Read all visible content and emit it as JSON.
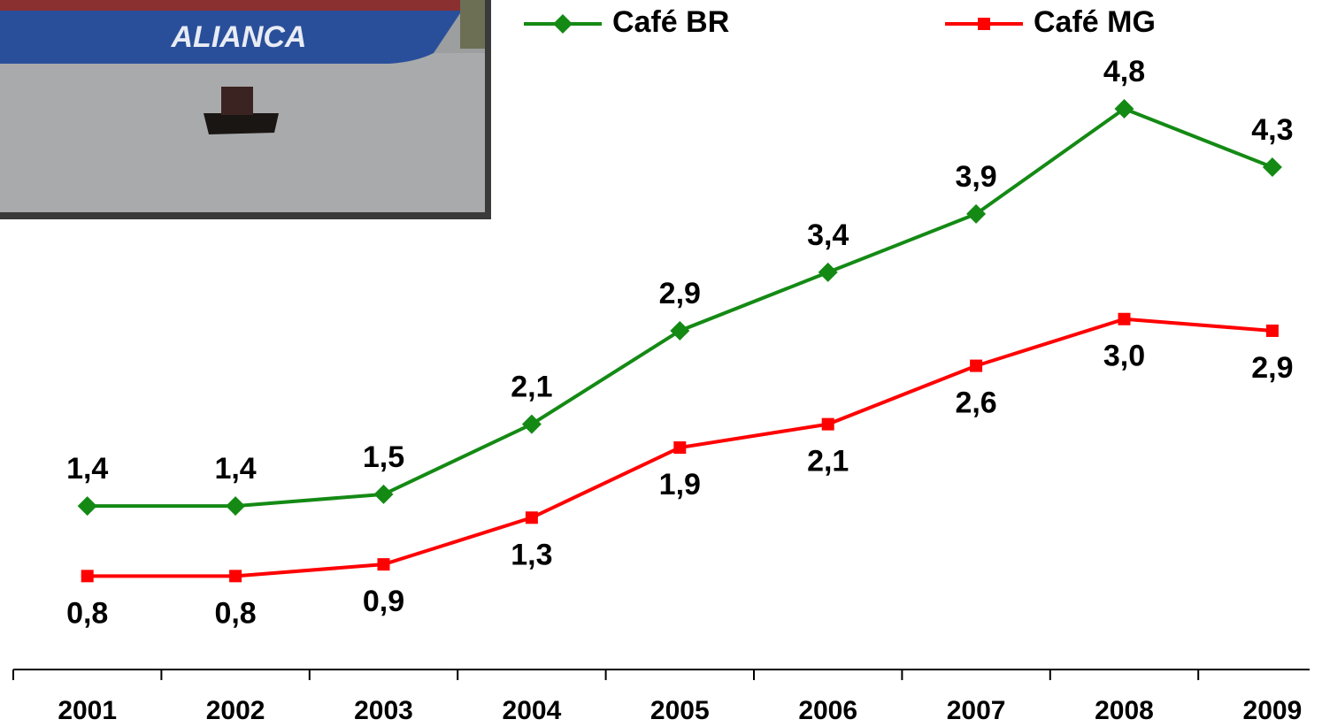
{
  "chart_data": {
    "type": "line",
    "categories": [
      "2001",
      "2002",
      "2003",
      "2004",
      "2005",
      "2006",
      "2007",
      "2008",
      "2009"
    ],
    "series": [
      {
        "name": "Café BR",
        "color": "#148a14",
        "marker": "diamond",
        "values": [
          1.4,
          1.4,
          1.5,
          2.1,
          2.9,
          3.4,
          3.9,
          4.8,
          4.3
        ],
        "value_labels": [
          "1,4",
          "1,4",
          "1,5",
          "2,1",
          "2,9",
          "3,4",
          "3,9",
          "4,8",
          "4,3"
        ]
      },
      {
        "name": "Café MG",
        "color": "#ff0000",
        "marker": "square",
        "values": [
          0.8,
          0.8,
          0.9,
          1.3,
          1.9,
          2.1,
          2.6,
          3.0,
          2.9
        ],
        "value_labels": [
          "0,8",
          "0,8",
          "0,9",
          "1,3",
          "1,9",
          "2,1",
          "2,6",
          "3,0",
          "2,9"
        ]
      }
    ]
  }
}
